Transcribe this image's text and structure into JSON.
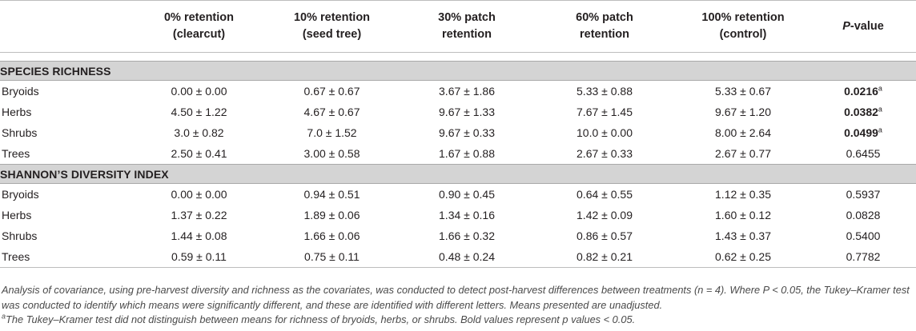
{
  "columns": [
    {
      "line1": "",
      "line2": ""
    },
    {
      "line1": "0% retention",
      "line2": "(clearcut)"
    },
    {
      "line1": "10% retention",
      "line2": "(seed tree)"
    },
    {
      "line1": "30% patch",
      "line2": "retention"
    },
    {
      "line1": "60% patch",
      "line2": "retention"
    },
    {
      "line1": "100% retention",
      "line2": "(control)"
    },
    {
      "line1": "P",
      "line2": "-value"
    }
  ],
  "sections": [
    {
      "title": "SPECIES RICHNESS",
      "rows": [
        {
          "label": "Bryoids",
          "cells": [
            "0.00 ± 0.00",
            "0.67 ± 0.67",
            "3.67 ± 1.86",
            "5.33 ± 0.88",
            "5.33 ± 0.67"
          ],
          "p": "0.0216",
          "sup": "a"
        },
        {
          "label": "Herbs",
          "cells": [
            "4.50 ± 1.22",
            "4.67 ± 0.67",
            "9.67 ± 1.33",
            "7.67 ± 1.45",
            "9.67 ± 1.20"
          ],
          "p": "0.0382",
          "sup": "a"
        },
        {
          "label": "Shrubs",
          "cells": [
            "3.0 ± 0.82",
            "7.0 ± 1.52",
            "9.67 ± 0.33",
            "10.0 ± 0.00",
            "8.00 ± 2.64"
          ],
          "p": "0.0499",
          "sup": "a"
        },
        {
          "label": "Trees",
          "cells": [
            "2.50 ± 0.41",
            "3.00 ± 0.58",
            "1.67 ± 0.88",
            "2.67 ± 0.33",
            "2.67 ± 0.77"
          ],
          "p": "0.6455",
          "sup": ""
        }
      ]
    },
    {
      "title": "SHANNON’S DIVERSITY INDEX",
      "rows": [
        {
          "label": "Bryoids",
          "cells": [
            "0.00 ± 0.00",
            "0.94 ± 0.51",
            "0.90 ± 0.45",
            "0.64 ± 0.55",
            "1.12 ± 0.35"
          ],
          "p": "0.5937",
          "sup": ""
        },
        {
          "label": "Herbs",
          "cells": [
            "1.37 ± 0.22",
            "1.89 ± 0.06",
            "1.34 ± 0.16",
            "1.42 ± 0.09",
            "1.60 ± 0.12"
          ],
          "p": "0.0828",
          "sup": ""
        },
        {
          "label": "Shrubs",
          "cells": [
            "1.44 ± 0.08",
            "1.66 ± 0.06",
            "1.66 ± 0.32",
            "0.86 ± 0.57",
            "1.43 ± 0.37"
          ],
          "p": "0.5400",
          "sup": ""
        },
        {
          "label": "Trees",
          "cells": [
            "0.59 ± 0.11",
            "0.75 ± 0.11",
            "0.48 ± 0.24",
            "0.82 ± 0.21",
            "0.62 ± 0.25"
          ],
          "p": "0.7782",
          "sup": ""
        }
      ]
    }
  ],
  "notes": {
    "main": "Analysis of covariance, using pre-harvest diversity and richness as the covariates, was conducted to detect post-harvest differences between treatments (n = 4). Where P < 0.05, the Tukey–Kramer test was conducted to identify which means were significantly different, and these are identified with different letters. Means presented are unadjusted.",
    "footnote_mark": "a",
    "footnote": "The Tukey–Kramer test did not distinguish between means for richness of bryoids, herbs, or shrubs. Bold values represent p values < 0.05."
  }
}
